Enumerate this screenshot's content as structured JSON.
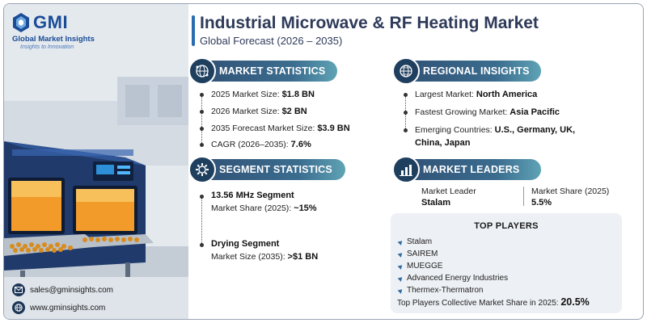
{
  "brand": {
    "name": "GMI",
    "full_name": "Global Market Insights",
    "tagline": "Insights to Innovation"
  },
  "header": {
    "title": "Industrial Microwave & RF Heating Market",
    "subtitle": "Global Forecast (2026 – 2035)"
  },
  "market_statistics": {
    "heading": "MARKET STATISTICS",
    "icon": "globe-network-icon",
    "rows": [
      {
        "label": "2025 Market Size:",
        "value": "$1.8 BN"
      },
      {
        "label": "2026 Market Size:",
        "value": "$2 BN"
      },
      {
        "label": "2035 Forecast Market Size:",
        "value": "$3.9 BN"
      },
      {
        "label": "CAGR (2026–2035):",
        "value": "7.6%"
      }
    ]
  },
  "segment_statistics": {
    "heading": "SEGMENT STATISTICS",
    "icon": "gear-icon",
    "segments": [
      {
        "name": "13.56 MHz Segment",
        "metric_label": "Market Share (2025):",
        "metric_value": "~15%"
      },
      {
        "name": "Drying Segment",
        "metric_label": "Market Size (2035):",
        "metric_value": ">$1 BN"
      }
    ]
  },
  "regional_insights": {
    "heading": "REGIONAL INSIGHTS",
    "icon": "globe-icon",
    "rows": [
      {
        "label": "Largest Market:",
        "value": "North America"
      },
      {
        "label": "Fastest Growing Market:",
        "value": "Asia Pacific"
      },
      {
        "label": "Emerging Countries:",
        "value": "U.S., Germany, UK,",
        "value_line2": "China, Japan"
      }
    ]
  },
  "market_leaders": {
    "heading": "MARKET LEADERS",
    "icon": "bar-chart-icon",
    "leader_label": "Market Leader",
    "leader_value": "Stalam",
    "share_label": "Market Share (2025)",
    "share_value": "5.5%"
  },
  "top_players": {
    "heading": "TOP PLAYERS",
    "players": [
      "Stalam",
      "SAIREM",
      "MUEGGE",
      "Advanced Energy Industries",
      "Thermex-Thermatron"
    ],
    "collective_label": "Top Players Collective Market Share in 2025:",
    "collective_value": "20.5%"
  },
  "contact": {
    "email": "sales@gminsights.com",
    "website": "www.gminsights.com"
  },
  "colors": {
    "brand_blue": "#1a4c97",
    "pill_dark": "#2f4f73",
    "pill_light": "#5fa3b5",
    "title": "#2e3a59"
  }
}
